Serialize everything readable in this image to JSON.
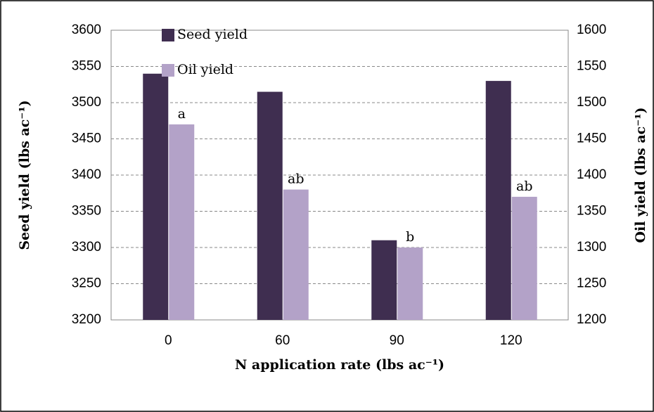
{
  "chart_data": {
    "type": "bar",
    "x_label": "N application rate (lbs ac⁻¹)",
    "y_label": "Seed yield (lbs ac⁻¹)",
    "y2_label": "Oil yield (lbs ac⁻¹)",
    "categories": [
      "0",
      "60",
      "90",
      "120"
    ],
    "series": [
      {
        "name": "Seed yield",
        "color": "#3f2e50",
        "values": [
          3540,
          3515,
          3310,
          3530
        ]
      },
      {
        "name": "Oil yield",
        "color": "#b3a2c8",
        "values": [
          1470,
          1380,
          1300,
          1370
        ],
        "axis": "y2"
      }
    ],
    "annotations": [
      "a",
      "ab",
      "b",
      "ab"
    ],
    "ylim": [
      3200,
      3600
    ],
    "yticks": [
      3200,
      3250,
      3300,
      3350,
      3400,
      3450,
      3500,
      3550,
      3600
    ],
    "y2lim": [
      1200,
      1600
    ],
    "y2ticks": [
      1200,
      1250,
      1300,
      1350,
      1400,
      1450,
      1500,
      1550,
      1600
    ],
    "grid": true
  }
}
